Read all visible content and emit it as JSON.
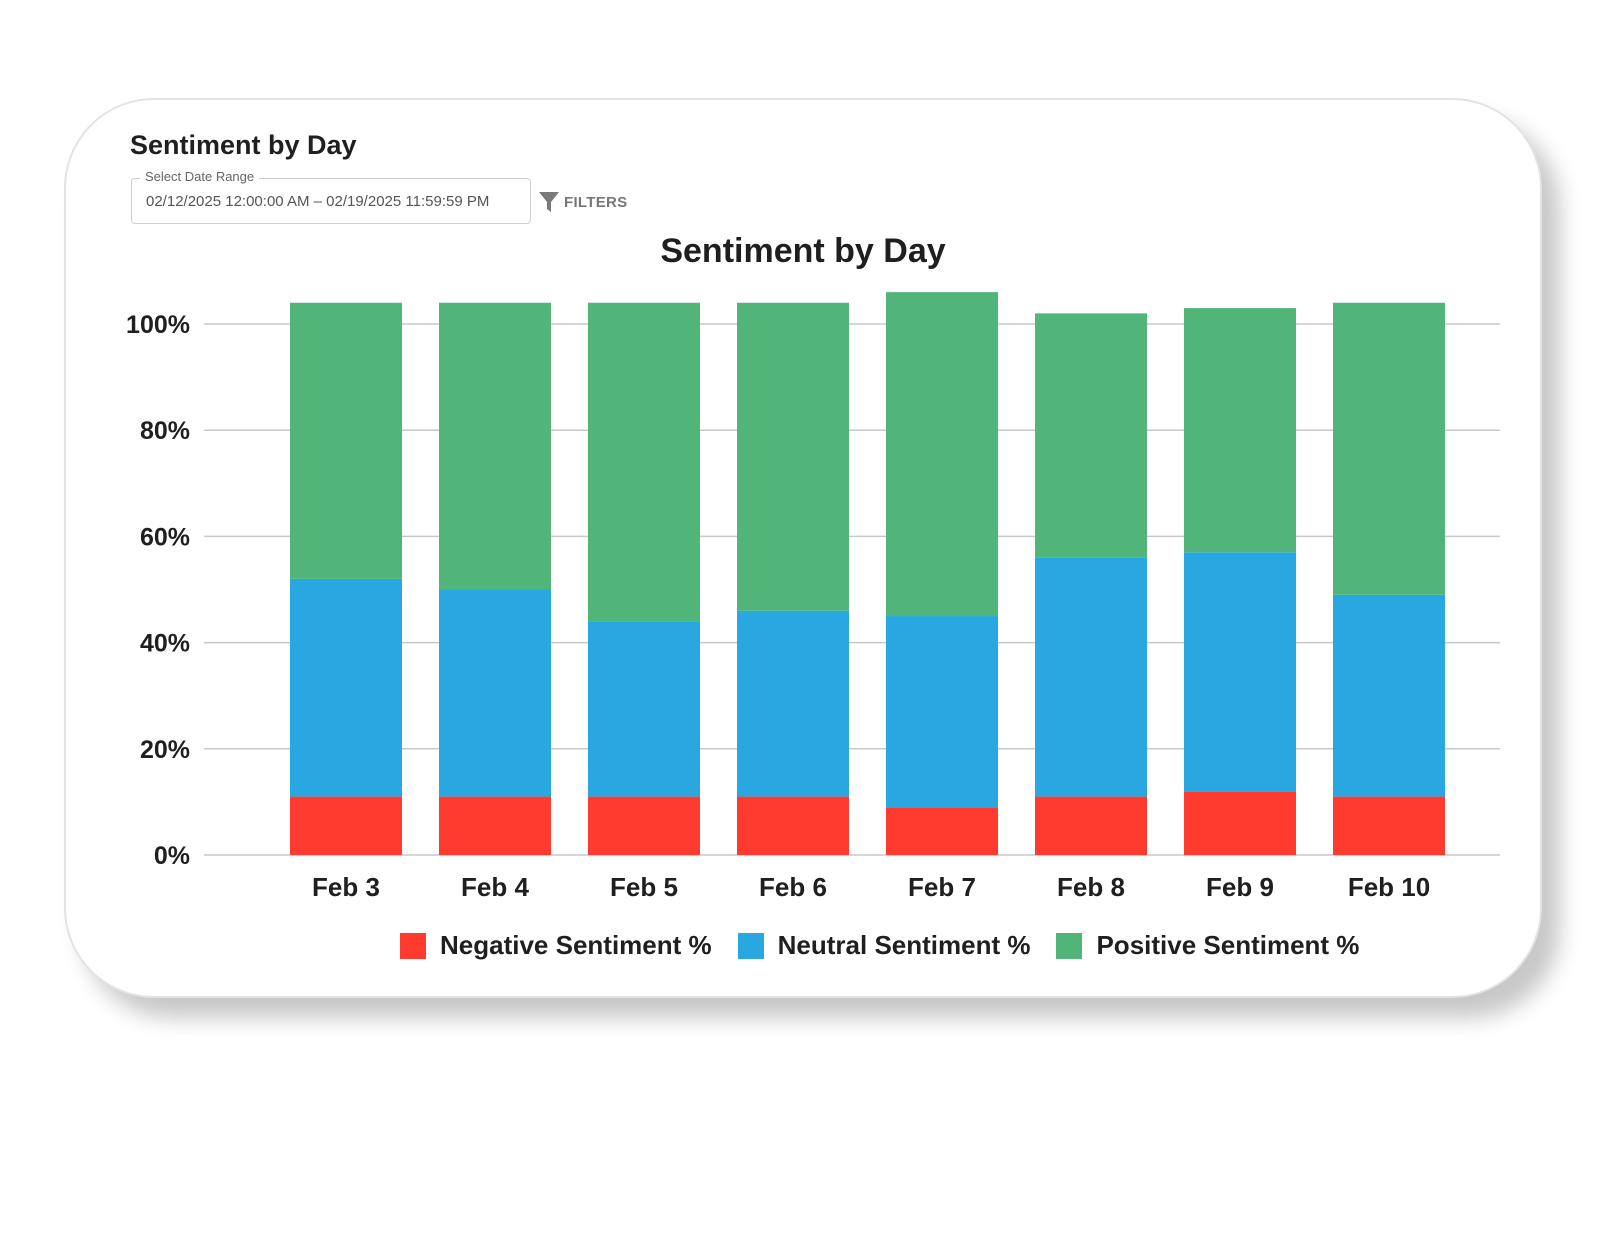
{
  "header": {
    "title": "Sentiment by Day",
    "date_range_label": "Select Date Range",
    "date_range_value": "02/12/2025 12:00:00 AM – 02/19/2025 11:59:59 PM",
    "filters_label": "FILTERS"
  },
  "colors": {
    "negative": "#ff3b30",
    "neutral": "#29a7e0",
    "positive": "#51b579",
    "grid": "#c8c8c8"
  },
  "chart_data": {
    "type": "bar",
    "stacked": true,
    "title": "Sentiment by Day",
    "xlabel": "",
    "ylabel": "",
    "ylim": [
      0,
      100
    ],
    "yticks": [
      "0%",
      "20%",
      "40%",
      "60%",
      "80%",
      "100%"
    ],
    "categories": [
      "Feb 3",
      "Feb 4",
      "Feb 5",
      "Feb 6",
      "Feb 7",
      "Feb 8",
      "Feb 9",
      "Feb 10"
    ],
    "series": [
      {
        "name": "Negative Sentiment %",
        "color": "#ff3b30",
        "values": [
          11,
          11,
          11,
          11,
          9,
          11,
          12,
          11
        ]
      },
      {
        "name": "Neutral Sentiment %",
        "color": "#29a7e0",
        "values": [
          41,
          39,
          33,
          35,
          36,
          45,
          45,
          38
        ]
      },
      {
        "name": "Positive Sentiment %",
        "color": "#51b579",
        "values": [
          52,
          54,
          60,
          58,
          61,
          46,
          46,
          55
        ]
      }
    ],
    "grid": true,
    "legend_position": "bottom"
  }
}
